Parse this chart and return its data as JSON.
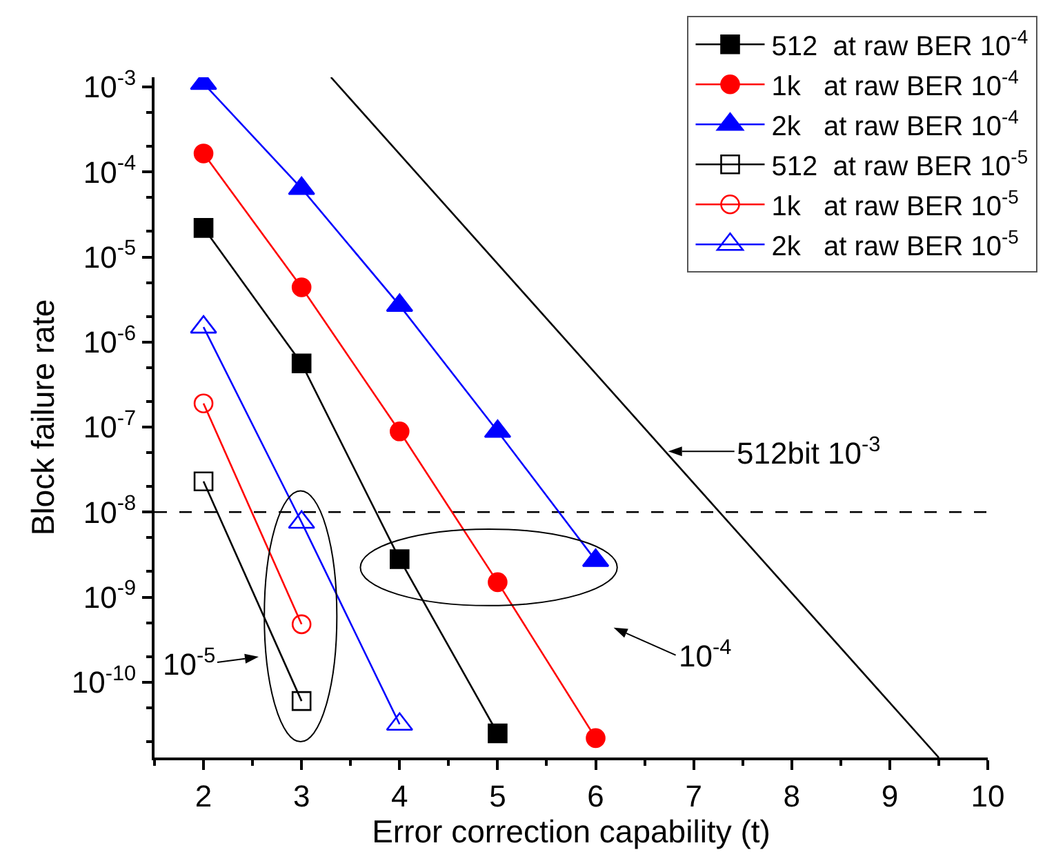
{
  "chart_data": {
    "type": "line",
    "xlabel": "Error correction capability (t)",
    "ylabel": "Block failure rate",
    "log": "y",
    "grid": false,
    "legend": "top right",
    "xlim": [
      1.5,
      10
    ],
    "xticks": [
      2,
      3,
      4,
      5,
      6,
      7,
      8,
      9,
      10
    ],
    "ylim": [
      1.3e-11,
      0.0013
    ],
    "yticks": [
      {
        "value": 0.001,
        "label": "10$^{-3}$"
      },
      {
        "value": 0.0001,
        "label": "10$^{-4}$"
      },
      {
        "value": 1e-05,
        "label": "10$^{-5}$"
      },
      {
        "value": 1e-06,
        "label": "10$^{-6}$"
      },
      {
        "value": 1e-07,
        "label": "10$^{-7}$"
      },
      {
        "value": 1e-08,
        "label": "10$^{-8}$"
      },
      {
        "value": 1e-09,
        "label": "10$^{-9}$"
      },
      {
        "value": 1e-10,
        "label": "10$^{-10}$"
      }
    ],
    "series": [
      {
        "name": "512  at raw BER 10$^{-4}$",
        "color": "#000000",
        "marker": "square",
        "x": [
          2,
          3,
          4,
          5
        ],
        "values": [
          2.2e-05,
          5.6e-07,
          2.8e-09,
          2.5e-11
        ]
      },
      {
        "name": "1k   at raw BER 10$^{-4}$",
        "color": "#ff0000",
        "marker": "circle",
        "x": [
          2,
          3,
          4,
          5,
          6
        ],
        "values": [
          0.000165,
          4.4e-06,
          8.9e-08,
          1.5e-09,
          2.2e-11
        ]
      },
      {
        "name": "2k   at raw BER 10$^{-4}$",
        "color": "#0000ff",
        "marker": "triangle",
        "x": [
          2,
          3,
          4,
          5,
          6
        ],
        "values": [
          0.0011,
          6.4e-05,
          2.7e-06,
          8.9e-08,
          2.7e-09
        ]
      },
      {
        "name": "512  at raw BER 10$^{-5}$",
        "color": "#000000",
        "marker": "square-open",
        "x": [
          2,
          3
        ],
        "values": [
          2.3e-08,
          6e-11
        ]
      },
      {
        "name": "1k   at raw BER 10$^{-5}$",
        "color": "#ff0000",
        "marker": "circle-open",
        "x": [
          2,
          3
        ],
        "values": [
          1.9e-07,
          4.8e-10
        ]
      },
      {
        "name": "2k   at raw BER 10$^{-5}$",
        "color": "#0000ff",
        "marker": "triangle-open",
        "x": [
          2,
          3,
          4
        ],
        "values": [
          1.5e-06,
          7.6e-09,
          3.2e-11
        ]
      },
      {
        "name": "512bit 10$^{-3}$",
        "color": "#000000",
        "marker": "none",
        "x": [
          3.3,
          9.5
        ],
        "values": [
          0.0013,
          1.3e-11
        ]
      }
    ],
    "ref_lines": [
      {
        "axis": "y",
        "value": 1e-08,
        "color": "#000000",
        "line_style": "dashed"
      }
    ],
    "annotations": [
      "10$^{-5}$",
      "10$^{-4}$"
    ]
  }
}
